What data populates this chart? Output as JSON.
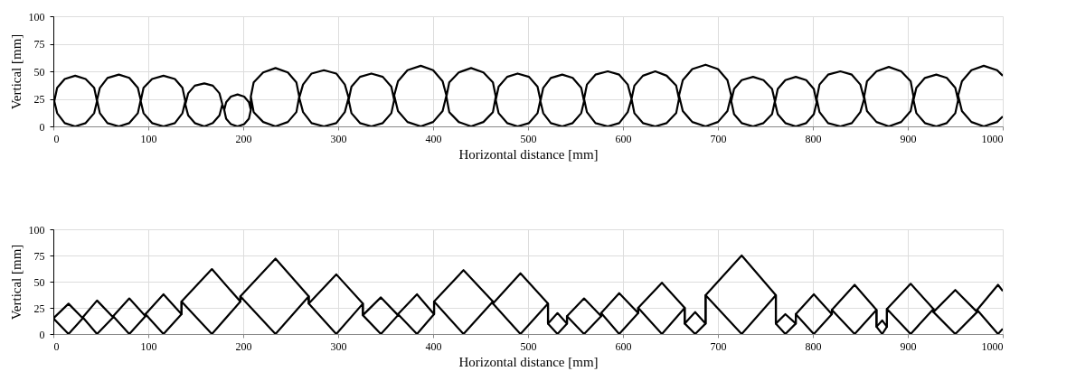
{
  "chart_data": [
    {
      "type": "line",
      "xlabel": "Horizontal distance [mm]",
      "ylabel": "Vertical [mm]",
      "xlim": [
        0,
        1000
      ],
      "ylim": [
        0,
        100
      ],
      "xticks": [
        0,
        100,
        200,
        300,
        400,
        500,
        600,
        700,
        800,
        900,
        1000
      ],
      "yticks": [
        0,
        25,
        50,
        75,
        100
      ],
      "grid": true,
      "series": [
        {
          "color": "#000000",
          "x": [
            1,
            4,
            12,
            23,
            34,
            43,
            46,
            46,
            49,
            57,
            69,
            80,
            89,
            92,
            92,
            95,
            104,
            116,
            128,
            136,
            139,
            139,
            142,
            149,
            159,
            168,
            175,
            178,
            180,
            182,
            187,
            194,
            201,
            206,
            208,
            208,
            211,
            221,
            234,
            247,
            256,
            259,
            259,
            263,
            272,
            285,
            298,
            307,
            311,
            311,
            314,
            323,
            335,
            347,
            356,
            359,
            359,
            363,
            373,
            387,
            400,
            410,
            414,
            414,
            417,
            427,
            440,
            453,
            463,
            466,
            466,
            469,
            478,
            489,
            501,
            510,
            513,
            513,
            516,
            524,
            536,
            547,
            556,
            559,
            559,
            562,
            571,
            584,
            596,
            605,
            609,
            609,
            612,
            621,
            634,
            646,
            656,
            659,
            659,
            663,
            673,
            687,
            700,
            710,
            714,
            714,
            717,
            725,
            737,
            748,
            757,
            760,
            760,
            763,
            771,
            782,
            793,
            801,
            804,
            804,
            807,
            816,
            829,
            841,
            850,
            854,
            854,
            857,
            867,
            880,
            893,
            903,
            906,
            906,
            909,
            918,
            930,
            941,
            950,
            953,
            953,
            957,
            967,
            980,
            994,
            1000,
            null,
            1,
            4,
            12,
            23,
            34,
            43,
            46,
            46,
            49,
            57,
            69,
            80,
            89,
            92,
            92,
            95,
            104,
            116,
            128,
            136,
            139,
            139,
            142,
            149,
            159,
            168,
            175,
            178,
            180,
            182,
            187,
            194,
            201,
            206,
            208,
            208,
            211,
            221,
            234,
            247,
            256,
            259,
            259,
            263,
            272,
            285,
            298,
            307,
            311,
            311,
            314,
            323,
            335,
            347,
            356,
            359,
            359,
            363,
            373,
            387,
            400,
            410,
            414,
            414,
            417,
            427,
            440,
            453,
            463,
            466,
            466,
            469,
            478,
            489,
            501,
            510,
            513,
            513,
            516,
            524,
            536,
            547,
            556,
            559,
            559,
            562,
            571,
            584,
            596,
            605,
            609,
            609,
            612,
            621,
            634,
            646,
            656,
            659,
            659,
            663,
            673,
            687,
            700,
            710,
            714,
            714,
            717,
            725,
            737,
            748,
            757,
            760,
            760,
            763,
            771,
            782,
            793,
            801,
            804,
            804,
            807,
            816,
            829,
            841,
            850,
            854,
            854,
            857,
            867,
            880,
            893,
            903,
            906,
            906,
            909,
            918,
            930,
            941,
            950,
            953,
            953,
            957,
            967,
            980,
            994,
            1000
          ],
          "values": [
            23,
            35,
            43,
            46,
            43,
            35,
            23,
            24,
            35,
            44,
            47,
            44,
            35,
            24,
            23,
            35,
            43,
            46,
            43,
            35,
            23,
            20,
            30,
            37,
            39,
            37,
            30,
            20,
            15,
            22,
            27,
            29,
            27,
            22,
            15,
            27,
            40,
            49,
            53,
            49,
            40,
            27,
            26,
            38,
            48,
            51,
            48,
            38,
            26,
            24,
            36,
            45,
            48,
            45,
            36,
            24,
            28,
            41,
            51,
            55,
            51,
            41,
            28,
            27,
            40,
            49,
            53,
            49,
            40,
            27,
            24,
            36,
            45,
            48,
            45,
            36,
            24,
            23,
            35,
            44,
            47,
            44,
            35,
            23,
            25,
            38,
            47,
            50,
            47,
            38,
            25,
            25,
            37,
            46,
            50,
            46,
            37,
            25,
            28,
            42,
            52,
            56,
            52,
            42,
            28,
            23,
            34,
            42,
            45,
            42,
            34,
            23,
            22,
            34,
            42,
            45,
            42,
            34,
            22,
            25,
            38,
            47,
            50,
            47,
            38,
            25,
            27,
            41,
            50,
            54,
            50,
            41,
            27,
            24,
            35,
            44,
            47,
            44,
            35,
            24,
            28,
            41,
            51,
            55,
            51,
            46,
            null,
            23,
            12,
            3,
            0,
            3,
            12,
            23,
            24,
            12,
            3,
            0,
            3,
            12,
            24,
            23,
            12,
            3,
            0,
            3,
            12,
            23,
            20,
            10,
            3,
            0,
            3,
            10,
            20,
            15,
            7,
            2,
            0,
            2,
            7,
            15,
            27,
            13,
            4,
            0,
            4,
            13,
            27,
            26,
            13,
            3,
            0,
            3,
            13,
            26,
            24,
            12,
            3,
            0,
            3,
            12,
            24,
            28,
            14,
            4,
            0,
            4,
            14,
            28,
            27,
            13,
            4,
            0,
            4,
            13,
            27,
            24,
            12,
            3,
            0,
            3,
            12,
            24,
            23,
            12,
            3,
            0,
            3,
            12,
            23,
            25,
            13,
            3,
            0,
            3,
            13,
            25,
            25,
            12,
            3,
            0,
            3,
            12,
            25,
            28,
            14,
            4,
            0,
            4,
            14,
            28,
            23,
            11,
            3,
            0,
            3,
            11,
            23,
            22,
            11,
            3,
            0,
            3,
            11,
            22,
            25,
            13,
            3,
            0,
            3,
            13,
            25,
            27,
            14,
            4,
            0,
            4,
            14,
            27,
            24,
            12,
            3,
            0,
            3,
            12,
            24,
            28,
            14,
            4,
            0,
            4,
            9
          ]
        }
      ]
    },
    {
      "type": "line",
      "xlabel": "Horizontal distance [mm]",
      "ylabel": "Vertical [mm]",
      "xlim": [
        0,
        1000
      ],
      "ylim": [
        0,
        100
      ],
      "xticks": [
        0,
        100,
        200,
        300,
        400,
        500,
        600,
        700,
        800,
        900,
        1000
      ],
      "yticks": [
        0,
        25,
        50,
        75,
        100
      ],
      "grid": true,
      "series": [
        {
          "color": "#000000",
          "x": [
            0,
            16,
            31,
            31,
            46,
            63,
            63,
            80,
            97,
            97,
            116,
            135,
            135,
            167,
            197,
            197,
            234,
            269,
            269,
            298,
            326,
            326,
            345,
            363,
            363,
            383,
            401,
            401,
            432,
            463,
            463,
            492,
            521,
            521,
            531,
            541,
            541,
            559,
            577,
            577,
            596,
            616,
            616,
            641,
            665,
            665,
            676,
            687,
            687,
            725,
            761,
            761,
            771,
            782,
            782,
            801,
            820,
            820,
            844,
            867,
            867,
            873,
            878,
            878,
            903,
            927,
            927,
            950,
            973,
            973,
            995,
            1000
          ],
          "values": [
            15,
            29,
            15,
            16,
            32,
            16,
            17,
            34,
            17,
            19,
            38,
            19,
            31,
            62,
            31,
            36,
            72,
            36,
            29,
            57,
            29,
            18,
            35,
            18,
            19,
            38,
            19,
            31,
            61,
            31,
            29,
            58,
            29,
            10,
            20,
            10,
            17,
            34,
            17,
            20,
            39,
            20,
            25,
            49,
            25,
            10,
            21,
            10,
            37,
            75,
            37,
            10,
            19,
            10,
            19,
            38,
            19,
            23,
            47,
            23,
            7,
            13,
            7,
            24,
            48,
            24,
            21,
            42,
            21,
            23,
            47,
            41
          ]
        },
        {
          "color": "#000000",
          "x": [
            0,
            16,
            31,
            31,
            46,
            63,
            63,
            80,
            97,
            97,
            116,
            135,
            135,
            167,
            197,
            197,
            234,
            269,
            269,
            298,
            326,
            326,
            345,
            363,
            363,
            383,
            401,
            401,
            432,
            463,
            463,
            492,
            521,
            521,
            531,
            541,
            541,
            559,
            577,
            577,
            596,
            616,
            616,
            641,
            665,
            665,
            676,
            687,
            687,
            725,
            761,
            761,
            771,
            782,
            782,
            801,
            820,
            820,
            844,
            867,
            867,
            873,
            878,
            878,
            903,
            927,
            927,
            950,
            973,
            973,
            995,
            1000
          ],
          "values": [
            15,
            0,
            15,
            16,
            0,
            16,
            17,
            0,
            17,
            19,
            0,
            19,
            31,
            0,
            31,
            36,
            0,
            36,
            29,
            0,
            29,
            18,
            0,
            18,
            19,
            0,
            19,
            31,
            0,
            31,
            29,
            0,
            29,
            10,
            0,
            10,
            17,
            0,
            17,
            20,
            0,
            20,
            25,
            0,
            25,
            10,
            0,
            10,
            37,
            0,
            37,
            10,
            0,
            10,
            19,
            0,
            19,
            23,
            0,
            23,
            7,
            0,
            7,
            24,
            0,
            24,
            21,
            0,
            21,
            23,
            0,
            5
          ]
        }
      ]
    }
  ]
}
